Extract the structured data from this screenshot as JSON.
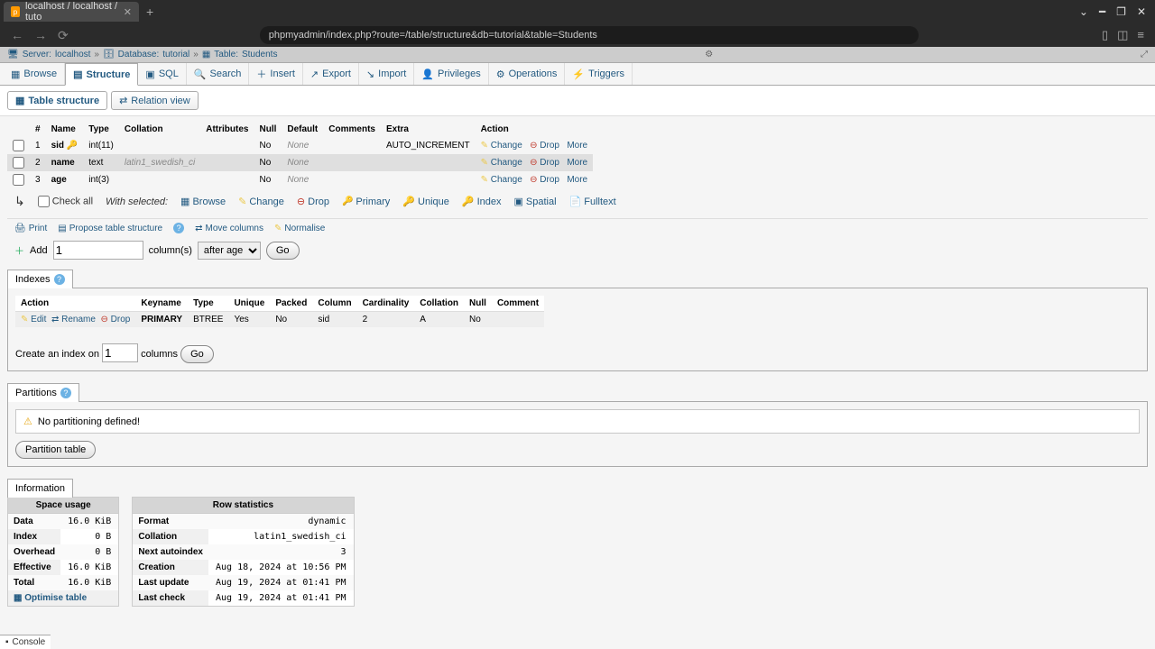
{
  "browser": {
    "tab_title": "localhost / localhost / tuto",
    "url": "phpmyadmin/index.php?route=/table/structure&db=tutorial&table=Students"
  },
  "breadcrumb": {
    "server_label": "Server:",
    "server_value": "localhost",
    "db_label": "Database:",
    "db_value": "tutorial",
    "table_label": "Table:",
    "table_value": "Students"
  },
  "top_tabs": [
    "Browse",
    "Structure",
    "SQL",
    "Search",
    "Insert",
    "Export",
    "Import",
    "Privileges",
    "Operations",
    "Triggers"
  ],
  "top_tab_icons": [
    "▦",
    "▤",
    "▣",
    "🔍",
    "＋",
    "↗",
    "↘",
    "👤",
    "⚙",
    "⚡"
  ],
  "sub_tabs": {
    "table_structure": "Table structure",
    "relation_view": "Relation view"
  },
  "struct": {
    "headers": [
      "#",
      "Name",
      "Type",
      "Collation",
      "Attributes",
      "Null",
      "Default",
      "Comments",
      "Extra",
      "Action"
    ],
    "rows": [
      {
        "n": "1",
        "name": "sid",
        "key": true,
        "type": "int(11)",
        "collation": "",
        "null": "No",
        "default": "None",
        "extra": "AUTO_INCREMENT"
      },
      {
        "n": "2",
        "name": "name",
        "type": "text",
        "collation": "latin1_swedish_ci",
        "null": "No",
        "default": "None",
        "extra": ""
      },
      {
        "n": "3",
        "name": "age",
        "type": "int(3)",
        "collation": "",
        "null": "No",
        "default": "None",
        "extra": ""
      }
    ],
    "actions": {
      "change": "Change",
      "drop": "Drop",
      "more": "More"
    }
  },
  "checkall": {
    "label": "Check all",
    "with": "With selected:",
    "browse": "Browse",
    "change": "Change",
    "drop": "Drop",
    "primary": "Primary",
    "unique": "Unique",
    "index": "Index",
    "spatial": "Spatial",
    "fulltext": "Fulltext"
  },
  "toolbar": {
    "print": "Print",
    "propose": "Propose table structure",
    "move": "Move columns",
    "normalise": "Normalise"
  },
  "addcol": {
    "add": "Add",
    "value": "1",
    "columns": "column(s)",
    "after": "after age",
    "go": "Go"
  },
  "indexes": {
    "title": "Indexes",
    "headers": [
      "Action",
      "Keyname",
      "Type",
      "Unique",
      "Packed",
      "Column",
      "Cardinality",
      "Collation",
      "Null",
      "Comment"
    ],
    "row": {
      "edit": "Edit",
      "rename": "Rename",
      "drop": "Drop",
      "keyname": "PRIMARY",
      "type": "BTREE",
      "unique": "Yes",
      "packed": "No",
      "column": "sid",
      "card": "2",
      "coll": "A",
      "null": "No",
      "comment": ""
    },
    "create_label": "Create an index on",
    "create_value": "1",
    "columns": "columns",
    "go": "Go"
  },
  "partitions": {
    "title": "Partitions",
    "msg": "No partitioning defined!",
    "btn": "Partition table"
  },
  "information": {
    "title": "Information"
  },
  "space": {
    "caption": "Space usage",
    "rows": [
      [
        "Data",
        "16.0 KiB"
      ],
      [
        "Index",
        "0 B"
      ],
      [
        "Overhead",
        "0 B"
      ],
      [
        "Effective",
        "16.0 KiB"
      ],
      [
        "Total",
        "16.0 KiB"
      ]
    ],
    "optimise": "Optimise table"
  },
  "rowstats": {
    "caption": "Row statistics",
    "rows": [
      [
        "Format",
        "dynamic"
      ],
      [
        "Collation",
        "latin1_swedish_ci"
      ],
      [
        "Next autoindex",
        "3"
      ],
      [
        "Creation",
        "Aug 18, 2024 at 10:56 PM"
      ],
      [
        "Last update",
        "Aug 19, 2024 at 01:41 PM"
      ],
      [
        "Last check",
        "Aug 19, 2024 at 01:41 PM"
      ]
    ]
  },
  "console": "Console"
}
